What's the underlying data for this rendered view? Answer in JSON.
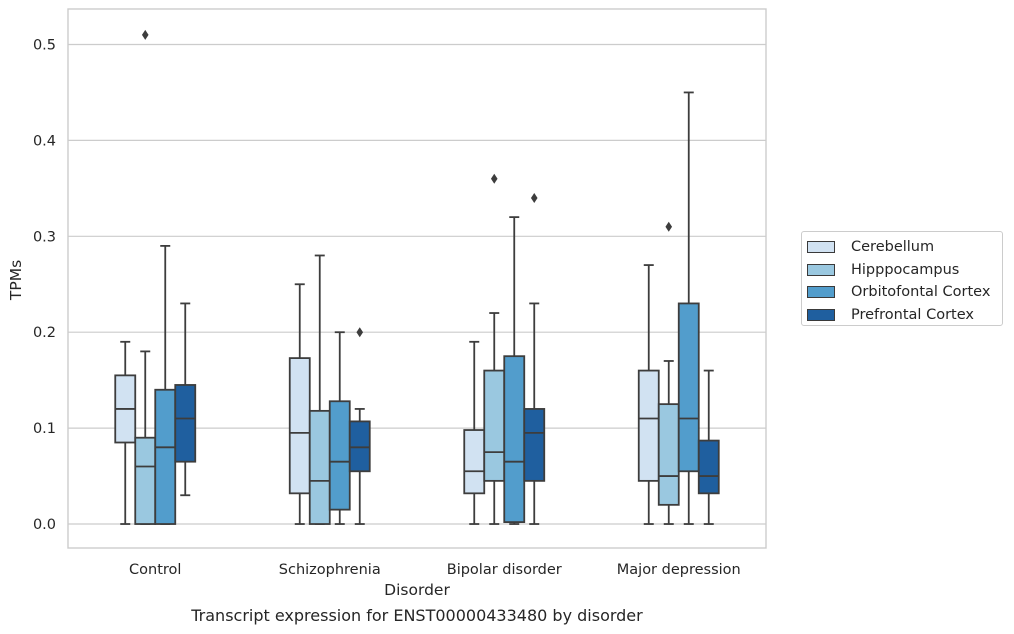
{
  "chart_data": {
    "type": "box",
    "xlabel": "Disorder",
    "ylabel": "TPMs",
    "caption": "Transcript expression for ENST00000433480 by disorder",
    "ylim": [
      -0.025,
      0.537
    ],
    "yticks": [
      0.0,
      0.1,
      0.2,
      0.3,
      0.4,
      0.5
    ],
    "ytick_labels": [
      "0.0",
      "0.1",
      "0.2",
      "0.3",
      "0.4",
      "0.5"
    ],
    "grid": true,
    "legend_position": "right",
    "categories": [
      "Control",
      "Schizophrenia",
      "Bipolar disorder",
      "Major depression"
    ],
    "series": [
      {
        "name": "Cerebellum",
        "color": "#d1e2f2",
        "boxes": [
          {
            "whisker_low": 0.0,
            "q1": 0.085,
            "median": 0.12,
            "q3": 0.155,
            "whisker_high": 0.19,
            "outliers": []
          },
          {
            "whisker_low": 0.0,
            "q1": 0.032,
            "median": 0.095,
            "q3": 0.173,
            "whisker_high": 0.25,
            "outliers": []
          },
          {
            "whisker_low": 0.0,
            "q1": 0.032,
            "median": 0.055,
            "q3": 0.098,
            "whisker_high": 0.19,
            "outliers": []
          },
          {
            "whisker_low": 0.0,
            "q1": 0.045,
            "median": 0.11,
            "q3": 0.16,
            "whisker_high": 0.27,
            "outliers": []
          }
        ]
      },
      {
        "name": "Hipppocampus",
        "color": "#9ac8e0",
        "boxes": [
          {
            "whisker_low": 0.0,
            "q1": 0.0,
            "median": 0.06,
            "q3": 0.09,
            "whisker_high": 0.18,
            "outliers": [
              0.51
            ]
          },
          {
            "whisker_low": 0.0,
            "q1": 0.0,
            "median": 0.045,
            "q3": 0.118,
            "whisker_high": 0.28,
            "outliers": []
          },
          {
            "whisker_low": 0.0,
            "q1": 0.045,
            "median": 0.075,
            "q3": 0.16,
            "whisker_high": 0.22,
            "outliers": [
              0.36
            ]
          },
          {
            "whisker_low": 0.0,
            "q1": 0.02,
            "median": 0.05,
            "q3": 0.125,
            "whisker_high": 0.17,
            "outliers": [
              0.31
            ]
          }
        ]
      },
      {
        "name": "Orbitofontal Cortex",
        "color": "#529dcc",
        "boxes": [
          {
            "whisker_low": 0.0,
            "q1": 0.0,
            "median": 0.08,
            "q3": 0.14,
            "whisker_high": 0.29,
            "outliers": []
          },
          {
            "whisker_low": 0.0,
            "q1": 0.015,
            "median": 0.065,
            "q3": 0.128,
            "whisker_high": 0.2,
            "outliers": []
          },
          {
            "whisker_low": 0.0,
            "q1": 0.002,
            "median": 0.065,
            "q3": 0.175,
            "whisker_high": 0.32,
            "outliers": []
          },
          {
            "whisker_low": 0.0,
            "q1": 0.055,
            "median": 0.11,
            "q3": 0.23,
            "whisker_high": 0.45,
            "outliers": []
          }
        ]
      },
      {
        "name": "Prefrontal Cortex",
        "color": "#1f5f9f",
        "boxes": [
          {
            "whisker_low": 0.03,
            "q1": 0.065,
            "median": 0.11,
            "q3": 0.145,
            "whisker_high": 0.23,
            "outliers": []
          },
          {
            "whisker_low": 0.0,
            "q1": 0.055,
            "median": 0.08,
            "q3": 0.107,
            "whisker_high": 0.12,
            "outliers": [
              0.2
            ]
          },
          {
            "whisker_low": 0.0,
            "q1": 0.045,
            "median": 0.095,
            "q3": 0.12,
            "whisker_high": 0.23,
            "outliers": [
              0.34
            ]
          },
          {
            "whisker_low": 0.0,
            "q1": 0.032,
            "median": 0.05,
            "q3": 0.087,
            "whisker_high": 0.16,
            "outliers": []
          }
        ]
      }
    ]
  }
}
